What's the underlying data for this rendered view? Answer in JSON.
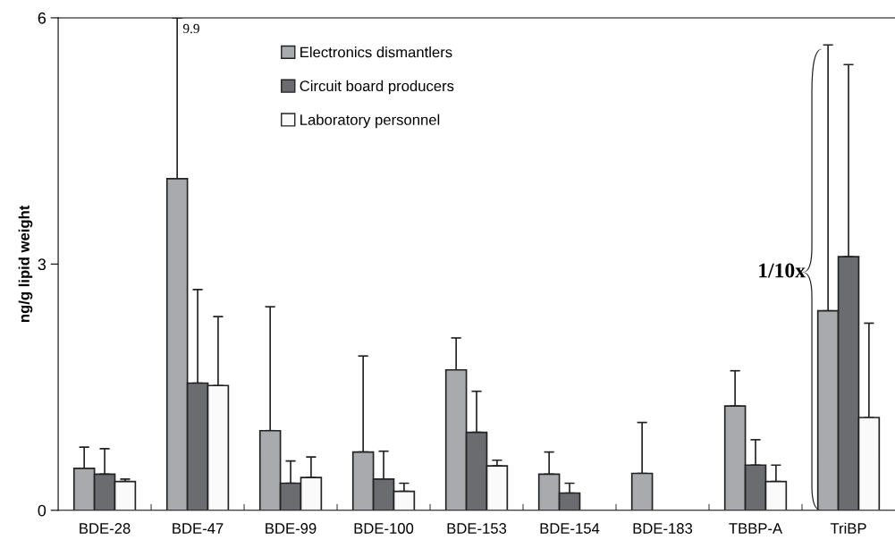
{
  "chart_data": {
    "type": "bar",
    "ylabel": "ng/g lipid weight",
    "categories": [
      "BDE-28",
      "BDE-47",
      "BDE-99",
      "BDE-100",
      "BDE-153",
      "BDE-154",
      "BDE-183",
      "TBBP-A",
      "TriBP"
    ],
    "series": [
      {
        "name": "Electronics dismantlers",
        "color": "#a9aaad",
        "values": [
          0.51,
          4.04,
          0.97,
          0.71,
          1.71,
          0.44,
          0.45,
          1.27,
          2.43
        ],
        "errors": [
          [
            0.51,
            0.77
          ],
          [
            4.04,
            6
          ],
          [
            0.97,
            2.48
          ],
          [
            0.71,
            1.88
          ],
          [
            1.71,
            2.1
          ],
          [
            0.44,
            0.71
          ],
          [
            0.45,
            1.07
          ],
          [
            1.27,
            1.7
          ],
          [
            2.43,
            5.67
          ]
        ]
      },
      {
        "name": "Circuit board producers",
        "color": "#6b6c70",
        "values": [
          0.44,
          1.55,
          0.33,
          0.38,
          0.95,
          0.21,
          null,
          0.55,
          3.09
        ],
        "errors": [
          [
            0.44,
            0.75
          ],
          [
            1.55,
            2.69
          ],
          [
            0.33,
            0.6
          ],
          [
            0.38,
            0.72
          ],
          [
            0.95,
            1.45
          ],
          [
            0.21,
            0.33
          ],
          null,
          [
            0.55,
            0.86
          ],
          [
            3.09,
            5.43
          ]
        ]
      },
      {
        "name": "Laboratory personnel",
        "color": "#fafafa",
        "values": [
          0.35,
          1.52,
          0.4,
          0.23,
          0.54,
          null,
          null,
          0.35,
          1.13
        ],
        "errors": [
          [
            0.35,
            0.38
          ],
          [
            1.52,
            2.36
          ],
          [
            0.4,
            0.65
          ],
          [
            0.23,
            0.33
          ],
          [
            0.54,
            0.61
          ],
          null,
          null,
          [
            0.35,
            0.55
          ],
          [
            1.13,
            2.28
          ]
        ]
      }
    ],
    "ylim": [
      0,
      6
    ],
    "yticks": [
      0,
      3,
      6
    ],
    "grid": false,
    "legend": "top",
    "annotations": [
      "9.9",
      "1/10x"
    ]
  }
}
